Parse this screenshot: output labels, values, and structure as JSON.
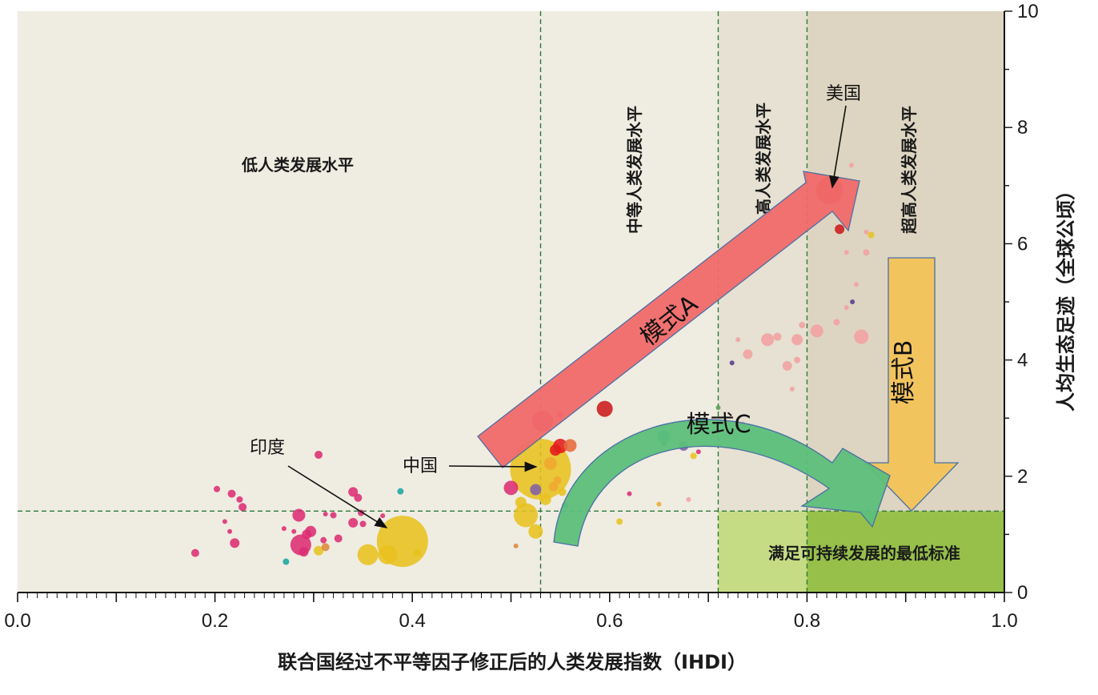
{
  "chart_data": {
    "type": "scatter",
    "title": "",
    "xlabel": "联合国经过不平等因子修正后的人类发展指数（IHDI）",
    "ylabel": "人均生态足迹（全球公顷）",
    "xlim": [
      0.0,
      1.0
    ],
    "ylim": [
      0,
      10
    ],
    "x_ticks": [
      "0.0",
      "0.2",
      "0.4",
      "0.6",
      "0.8",
      "1.0"
    ],
    "y_ticks": [
      "0",
      "2",
      "4",
      "6",
      "8",
      "10"
    ],
    "zones": [
      {
        "label": "低人类发展水平",
        "x_from": 0.0,
        "x_to": 0.53,
        "color": "#efece2"
      },
      {
        "label": "中等人类发展水平",
        "x_from": 0.53,
        "x_to": 0.71,
        "color": "#efece2"
      },
      {
        "label": "高人类发展水平",
        "x_from": 0.71,
        "x_to": 0.8,
        "color": "#e6e1d2"
      },
      {
        "label": "超高人类发展水平",
        "x_from": 0.8,
        "x_to": 1.0,
        "color": "#ddd5c1"
      }
    ],
    "threshold_y": 1.4,
    "threshold_box_label": "满足可持续发展的最低标准",
    "threshold_colors": {
      "light": "#c6dc84",
      "dark": "#96c04a"
    },
    "annotations": [
      {
        "text": "美国",
        "x": 0.823,
        "y": 6.9
      },
      {
        "text": "中国",
        "x": 0.54,
        "y": 2.1
      },
      {
        "text": "印度",
        "x": 0.377,
        "y": 1.1
      }
    ],
    "patterns": [
      {
        "label": "模式A",
        "color": "#f06a6a"
      },
      {
        "label": "模式B",
        "color": "#f2c45e"
      },
      {
        "label": "模式C",
        "color": "#5cbf7a"
      }
    ],
    "points": [
      {
        "x": 0.39,
        "y": 0.88,
        "size": 32,
        "color": "#e8c21f"
      },
      {
        "x": 0.355,
        "y": 0.65,
        "size": 13,
        "color": "#e8c21f"
      },
      {
        "x": 0.375,
        "y": 0.65,
        "size": 12,
        "color": "#e8c21f"
      },
      {
        "x": 0.405,
        "y": 0.68,
        "size": 5,
        "color": "#e8c21f"
      },
      {
        "x": 0.18,
        "y": 0.68,
        "size": 5,
        "color": "#dc2d73"
      },
      {
        "x": 0.202,
        "y": 1.78,
        "size": 4,
        "color": "#dc2d73"
      },
      {
        "x": 0.21,
        "y": 1.22,
        "size": 3,
        "color": "#dc2d73"
      },
      {
        "x": 0.215,
        "y": 1.05,
        "size": 3,
        "color": "#dc2d73"
      },
      {
        "x": 0.217,
        "y": 1.7,
        "size": 5,
        "color": "#dc2d73"
      },
      {
        "x": 0.22,
        "y": 0.85,
        "size": 6,
        "color": "#dc2d73"
      },
      {
        "x": 0.225,
        "y": 1.6,
        "size": 4,
        "color": "#dc2d73"
      },
      {
        "x": 0.228,
        "y": 1.47,
        "size": 5,
        "color": "#dc2d73"
      },
      {
        "x": 0.27,
        "y": 1.1,
        "size": 3,
        "color": "#dc2d73"
      },
      {
        "x": 0.28,
        "y": 1.05,
        "size": 3,
        "color": "#dc2d73"
      },
      {
        "x": 0.285,
        "y": 1.33,
        "size": 8,
        "color": "#dc2d73"
      },
      {
        "x": 0.287,
        "y": 0.82,
        "size": 13,
        "color": "#dc2d73"
      },
      {
        "x": 0.29,
        "y": 0.7,
        "size": 6,
        "color": "#dc2d73"
      },
      {
        "x": 0.293,
        "y": 1.0,
        "size": 6,
        "color": "#dc2d73"
      },
      {
        "x": 0.297,
        "y": 1.05,
        "size": 7,
        "color": "#dc2d73"
      },
      {
        "x": 0.305,
        "y": 2.37,
        "size": 5,
        "color": "#dc2d73"
      },
      {
        "x": 0.31,
        "y": 0.9,
        "size": 4,
        "color": "#dc2d73"
      },
      {
        "x": 0.312,
        "y": 1.35,
        "size": 3,
        "color": "#dc2d73"
      },
      {
        "x": 0.32,
        "y": 1.33,
        "size": 4,
        "color": "#dc2d73"
      },
      {
        "x": 0.325,
        "y": 0.93,
        "size": 5,
        "color": "#dc2d73"
      },
      {
        "x": 0.34,
        "y": 1.73,
        "size": 6,
        "color": "#dc2d73"
      },
      {
        "x": 0.345,
        "y": 1.63,
        "size": 5,
        "color": "#dc2d73"
      },
      {
        "x": 0.348,
        "y": 1.37,
        "size": 4,
        "color": "#dc2d73"
      },
      {
        "x": 0.35,
        "y": 1.18,
        "size": 4,
        "color": "#dc2d73"
      },
      {
        "x": 0.34,
        "y": 1.2,
        "size": 6,
        "color": "#dc2d73"
      },
      {
        "x": 0.37,
        "y": 1.32,
        "size": 3,
        "color": "#dc2d73"
      },
      {
        "x": 0.305,
        "y": 0.72,
        "size": 6,
        "color": "#e8c21f"
      },
      {
        "x": 0.312,
        "y": 0.78,
        "size": 5,
        "color": "#dc8a3a"
      },
      {
        "x": 0.272,
        "y": 0.53,
        "size": 4,
        "color": "#1aa6a0"
      },
      {
        "x": 0.388,
        "y": 1.74,
        "size": 4,
        "color": "#1aa6a0"
      },
      {
        "x": 0.555,
        "y": 1.5,
        "size": 4,
        "color": "#1aa6a0"
      },
      {
        "x": 0.655,
        "y": 2.68,
        "size": 8,
        "color": "#1aa6a0"
      },
      {
        "x": 0.53,
        "y": 2.12,
        "size": 38,
        "color": "#e8c21f"
      },
      {
        "x": 0.54,
        "y": 2.22,
        "size": 8,
        "color": "#f0a830"
      },
      {
        "x": 0.543,
        "y": 1.82,
        "size": 6,
        "color": "#f0a830"
      },
      {
        "x": 0.547,
        "y": 1.93,
        "size": 5,
        "color": "#f0a830"
      },
      {
        "x": 0.55,
        "y": 2.52,
        "size": 9,
        "color": "#e21b1b"
      },
      {
        "x": 0.545,
        "y": 2.45,
        "size": 7,
        "color": "#e21b1b"
      },
      {
        "x": 0.56,
        "y": 2.53,
        "size": 8,
        "color": "#e86a3a"
      },
      {
        "x": 0.552,
        "y": 1.73,
        "size": 5,
        "color": "#e8c21f"
      },
      {
        "x": 0.525,
        "y": 1.77,
        "size": 7,
        "color": "#8060a8"
      },
      {
        "x": 0.5,
        "y": 1.8,
        "size": 9,
        "color": "#dc2d73"
      },
      {
        "x": 0.515,
        "y": 1.33,
        "size": 15,
        "color": "#e8c21f"
      },
      {
        "x": 0.51,
        "y": 1.55,
        "size": 7,
        "color": "#e8c21f"
      },
      {
        "x": 0.525,
        "y": 1.05,
        "size": 9,
        "color": "#e8c21f"
      },
      {
        "x": 0.535,
        "y": 1.6,
        "size": 7,
        "color": "#e8c21f"
      },
      {
        "x": 0.505,
        "y": 0.8,
        "size": 3,
        "color": "#dc8a3a"
      },
      {
        "x": 0.532,
        "y": 2.95,
        "size": 13,
        "color": "#dc2d73"
      },
      {
        "x": 0.55,
        "y": 3.07,
        "size": 4,
        "color": "#dc2d73"
      },
      {
        "x": 0.595,
        "y": 3.16,
        "size": 10,
        "color": "#cc1a1a"
      },
      {
        "x": 0.62,
        "y": 1.7,
        "size": 3,
        "color": "#dc2d73"
      },
      {
        "x": 0.655,
        "y": 2.55,
        "size": 3,
        "color": "#8060a8"
      },
      {
        "x": 0.675,
        "y": 2.52,
        "size": 6,
        "color": "#8060a8"
      },
      {
        "x": 0.685,
        "y": 2.35,
        "size": 4,
        "color": "#e8c21f"
      },
      {
        "x": 0.69,
        "y": 2.42,
        "size": 3,
        "color": "#dc2d73"
      },
      {
        "x": 0.61,
        "y": 1.22,
        "size": 4,
        "color": "#e8c21f"
      },
      {
        "x": 0.65,
        "y": 1.52,
        "size": 3,
        "color": "#f0a830"
      },
      {
        "x": 0.71,
        "y": 3.18,
        "size": 3,
        "color": "#5aa05a"
      },
      {
        "x": 0.724,
        "y": 3.95,
        "size": 3,
        "color": "#5a3a8a"
      },
      {
        "x": 0.73,
        "y": 4.35,
        "size": 3,
        "color": "#f2a0a0"
      },
      {
        "x": 0.74,
        "y": 4.1,
        "size": 6,
        "color": "#f2a0a0"
      },
      {
        "x": 0.76,
        "y": 4.35,
        "size": 8,
        "color": "#f2a0a0"
      },
      {
        "x": 0.77,
        "y": 4.4,
        "size": 5,
        "color": "#f2a0a0"
      },
      {
        "x": 0.78,
        "y": 3.9,
        "size": 6,
        "color": "#f2a0a0"
      },
      {
        "x": 0.79,
        "y": 4.35,
        "size": 7,
        "color": "#f2a0a0"
      },
      {
        "x": 0.795,
        "y": 4.6,
        "size": 4,
        "color": "#f2a0a0"
      },
      {
        "x": 0.81,
        "y": 4.5,
        "size": 8,
        "color": "#f2a0a0"
      },
      {
        "x": 0.83,
        "y": 4.65,
        "size": 4,
        "color": "#f2a0a0"
      },
      {
        "x": 0.84,
        "y": 4.9,
        "size": 3,
        "color": "#f2a0a0"
      },
      {
        "x": 0.855,
        "y": 4.4,
        "size": 9,
        "color": "#f2a0a0"
      },
      {
        "x": 0.86,
        "y": 5.85,
        "size": 4,
        "color": "#f2a0a0"
      },
      {
        "x": 0.85,
        "y": 5.3,
        "size": 3,
        "color": "#f2a0a0"
      },
      {
        "x": 0.846,
        "y": 5.0,
        "size": 3,
        "color": "#5a3a8a"
      },
      {
        "x": 0.84,
        "y": 5.85,
        "size": 3,
        "color": "#f2a0a0"
      },
      {
        "x": 0.86,
        "y": 6.2,
        "size": 3,
        "color": "#f2a0a0"
      },
      {
        "x": 0.865,
        "y": 6.15,
        "size": 4,
        "color": "#e8c21f"
      },
      {
        "x": 0.845,
        "y": 7.35,
        "size": 3,
        "color": "#f2a0a0"
      },
      {
        "x": 0.823,
        "y": 6.92,
        "size": 17,
        "color": "#e21b1b"
      },
      {
        "x": 0.833,
        "y": 6.25,
        "size": 6,
        "color": "#cc1a1a"
      },
      {
        "x": 0.79,
        "y": 4.0,
        "size": 4,
        "color": "#f2a0a0"
      },
      {
        "x": 0.785,
        "y": 3.5,
        "size": 3,
        "color": "#f2a0a0"
      },
      {
        "x": 0.735,
        "y": 2.9,
        "size": 3,
        "color": "#f2a0a0"
      },
      {
        "x": 0.68,
        "y": 1.6,
        "size": 3,
        "color": "#f2a0a0"
      }
    ]
  }
}
